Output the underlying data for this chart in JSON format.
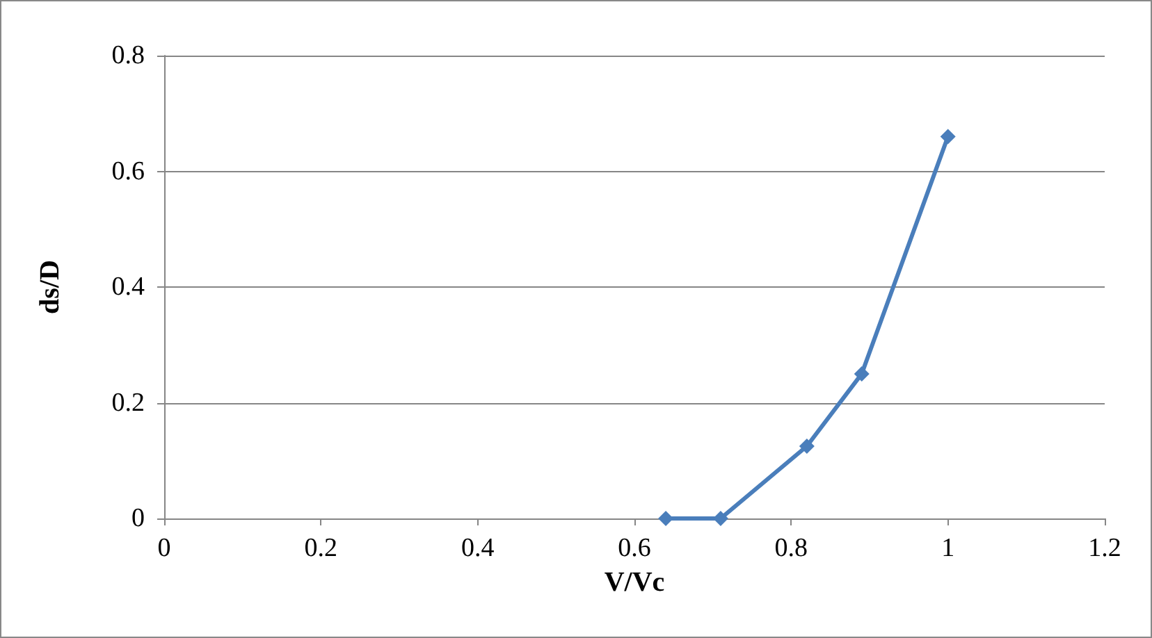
{
  "chart_data": {
    "type": "line",
    "xlabel": "V/Vc",
    "ylabel": "ds/D",
    "x": [
      0.64,
      0.71,
      0.82,
      0.89,
      1.0
    ],
    "series": [
      {
        "color": "#4a7ebb",
        "values": [
          0,
          0,
          0.125,
          0.25,
          0.66
        ]
      }
    ],
    "xlim": [
      0,
      1.2
    ],
    "xticks": [
      0,
      0.2,
      0.4,
      0.6,
      0.8,
      1,
      1.2
    ],
    "ylim": [
      0,
      0.8
    ],
    "yticks": [
      0,
      0.2,
      0.4,
      0.6,
      0.8
    ],
    "grid": "y",
    "marker": "diamond",
    "line_style": "solid"
  }
}
